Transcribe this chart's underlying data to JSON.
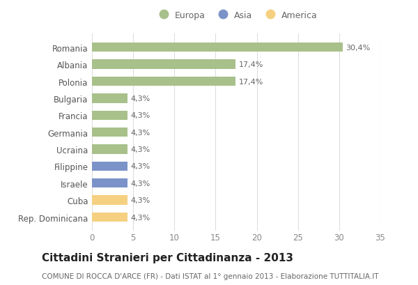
{
  "countries": [
    "Romania",
    "Albania",
    "Polonia",
    "Bulgaria",
    "Francia",
    "Germania",
    "Ucraina",
    "Filippine",
    "Israele",
    "Cuba",
    "Rep. Dominicana"
  ],
  "values": [
    30.4,
    17.4,
    17.4,
    4.3,
    4.3,
    4.3,
    4.3,
    4.3,
    4.3,
    4.3,
    4.3
  ],
  "labels": [
    "30,4%",
    "17,4%",
    "17,4%",
    "4,3%",
    "4,3%",
    "4,3%",
    "4,3%",
    "4,3%",
    "4,3%",
    "4,3%",
    "4,3%"
  ],
  "continents": [
    "Europa",
    "Europa",
    "Europa",
    "Europa",
    "Europa",
    "Europa",
    "Europa",
    "Asia",
    "Asia",
    "America",
    "America"
  ],
  "colors": {
    "Europa": "#a8c08a",
    "Asia": "#7b93c8",
    "America": "#f5d080"
  },
  "xlim": [
    0,
    35
  ],
  "xticks": [
    0,
    5,
    10,
    15,
    20,
    25,
    30,
    35
  ],
  "title": "Cittadini Stranieri per Cittadinanza - 2013",
  "subtitle": "COMUNE DI ROCCA D'ARCE (FR) - Dati ISTAT al 1° gennaio 2013 - Elaborazione TUTTITALIA.IT",
  "background_color": "#ffffff",
  "grid_color": "#dddddd",
  "bar_height": 0.55,
  "title_fontsize": 11,
  "subtitle_fontsize": 7.5,
  "label_fontsize": 8,
  "tick_fontsize": 8.5,
  "legend_fontsize": 9
}
